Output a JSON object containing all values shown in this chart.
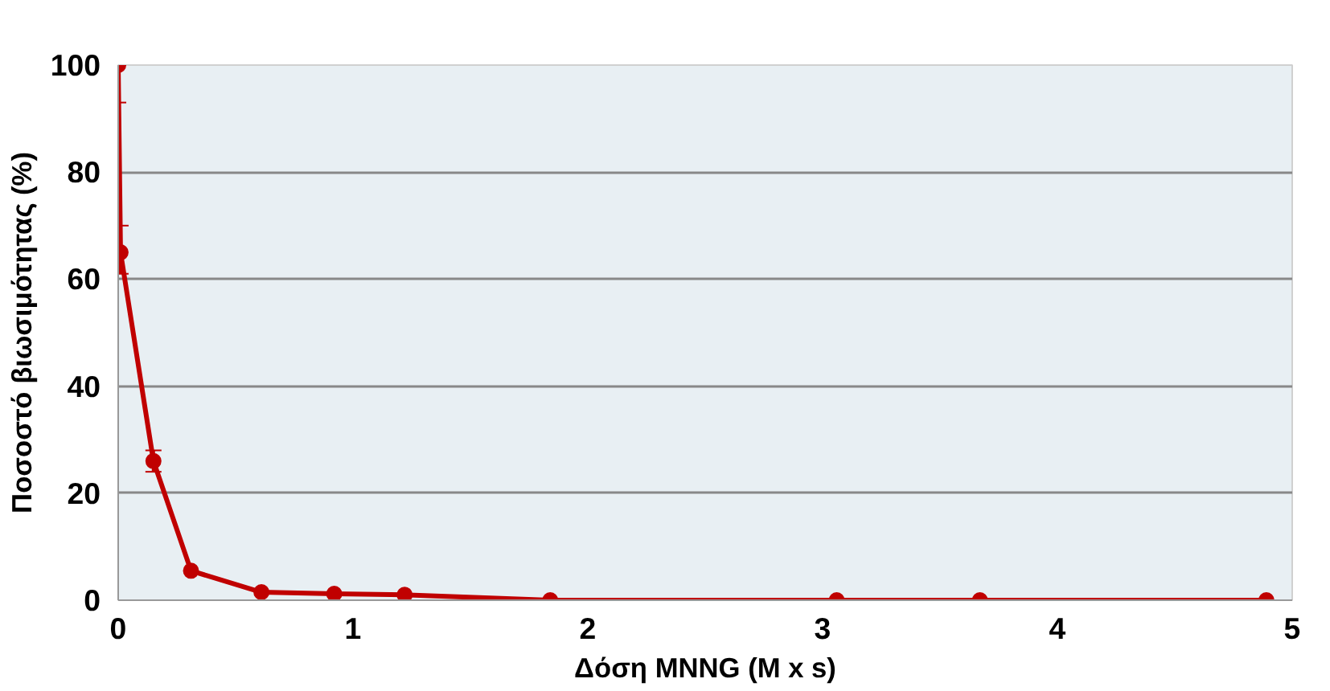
{
  "chart_data": {
    "type": "line",
    "xlabel": "Δόση MNNG (M x s)",
    "ylabel": "Ποσοστό βιωσιμότητας (%)",
    "x": [
      0,
      0.01,
      0.15,
      0.31,
      0.61,
      0.92,
      1.22,
      1.84,
      3.06,
      3.67,
      4.89
    ],
    "series": [
      {
        "color": "#c00000",
        "values": [
          100,
          65,
          26,
          5.5,
          1.5,
          1.2,
          1.0,
          0,
          0,
          0,
          0
        ],
        "errors": [
          [
            93,
            100
          ],
          [
            61,
            70
          ],
          [
            24,
            28
          ],
          null,
          null,
          null,
          null,
          null,
          null,
          null,
          null
        ]
      }
    ],
    "xlim": [
      0,
      5
    ],
    "ylim": [
      0,
      100
    ],
    "xticks": [
      0,
      1,
      2,
      3,
      4,
      5
    ],
    "yticks": [
      0,
      20,
      40,
      60,
      80,
      100
    ],
    "grid": "y",
    "marker": "circle",
    "line_style": "solid"
  }
}
